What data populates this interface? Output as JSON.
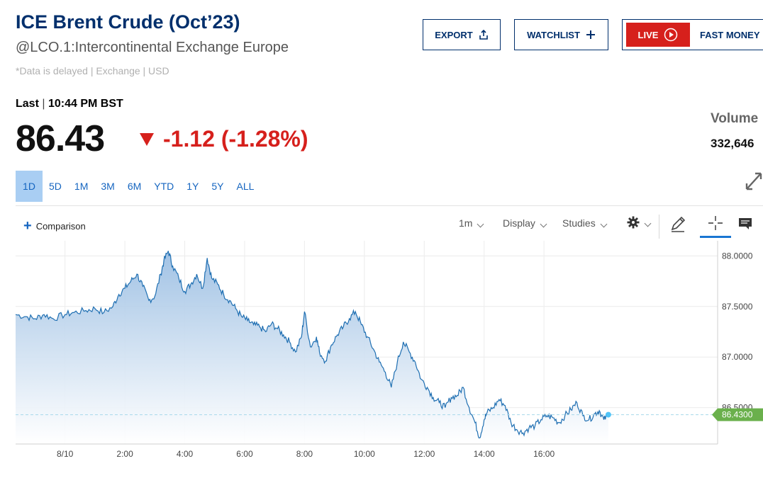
{
  "header": {
    "title": "ICE Brent Crude (Oct’23)",
    "subtitle": "@LCO.1:Intercontinental Exchange Europe",
    "delayed_note": "*Data is delayed | Exchange | USD"
  },
  "actions": {
    "export_label": "EXPORT",
    "watchlist_label": "WATCHLIST",
    "live_label": "LIVE",
    "fast_money_label": "FAST MONEY"
  },
  "quote": {
    "last_label": "Last",
    "separator": "|",
    "last_time": "10:44 PM BST",
    "price": "86.43",
    "change": "-1.12 (-1.28%)",
    "volume_label": "Volume",
    "volume_value": "332,646"
  },
  "ranges": [
    "1D",
    "5D",
    "1M",
    "3M",
    "6M",
    "YTD",
    "1Y",
    "5Y",
    "ALL"
  ],
  "active_range": "1D",
  "toolbar": {
    "comparison_label": "Comparison",
    "interval_label": "1m",
    "display_label": "Display",
    "studies_label": "Studies"
  },
  "colors": {
    "brand_navy": "#002f6c",
    "negative": "#d6201c",
    "line": "#1f6fb2",
    "last_tag": "#6ab04c",
    "last_dot": "#4fc3f7",
    "active_tab_bg": "#a9cef3"
  },
  "chart_data": {
    "type": "area",
    "x_tick_labels": [
      "8/10",
      "2:00",
      "4:00",
      "6:00",
      "8:00",
      "10:00",
      "12:00",
      "14:00",
      "16:00"
    ],
    "x_tick_hours": [
      0,
      2,
      4,
      6,
      8,
      10,
      12,
      14,
      16
    ],
    "x_range_hours": [
      -1.65,
      21.8
    ],
    "y_tick_labels": [
      "88.0000",
      "87.5000",
      "87.0000",
      "86.5000"
    ],
    "y_ticks": [
      88.0,
      87.5,
      87.0,
      86.5
    ],
    "y_range": [
      86.14,
      88.15
    ],
    "last_value_label": "86.4300",
    "last_value": 86.43,
    "grid": true,
    "series": [
      {
        "x": [
          -1.65,
          -1.3,
          -1.0,
          -0.7,
          -0.4,
          0.0,
          0.3,
          0.7,
          1.0,
          1.3,
          1.6,
          1.8,
          2.0,
          2.2,
          2.4,
          2.6,
          2.8,
          3.0,
          3.2,
          3.3,
          3.45,
          3.6,
          3.8,
          4.0,
          4.2,
          4.4,
          4.6,
          4.75,
          4.9,
          5.1,
          5.3,
          5.5,
          5.7,
          5.9,
          6.1,
          6.3,
          6.5,
          6.7,
          6.9,
          7.1,
          7.3,
          7.5,
          7.7,
          7.9,
          8.0,
          8.2,
          8.4,
          8.5,
          8.7,
          8.9,
          9.1,
          9.3,
          9.5,
          9.7,
          9.9,
          10.1,
          10.3,
          10.5,
          10.7,
          10.9,
          11.1,
          11.3,
          11.5,
          11.7,
          11.9,
          12.1,
          12.3,
          12.5,
          12.7,
          12.9,
          13.1,
          13.3,
          13.5,
          13.7,
          13.85,
          14.0,
          14.1,
          14.3,
          14.5,
          14.7,
          14.9,
          15.1,
          15.3,
          15.5,
          15.7,
          15.9,
          16.1,
          16.3,
          16.5,
          16.7,
          16.9,
          17.1,
          17.3,
          17.5,
          17.7,
          17.85,
          18.0,
          18.15
        ],
        "y": [
          87.42,
          87.4,
          87.38,
          87.42,
          87.38,
          87.42,
          87.44,
          87.46,
          87.48,
          87.44,
          87.5,
          87.62,
          87.68,
          87.75,
          87.82,
          87.7,
          87.56,
          87.6,
          87.82,
          87.95,
          88.05,
          87.9,
          87.78,
          87.65,
          87.72,
          87.82,
          87.68,
          87.98,
          87.78,
          87.72,
          87.62,
          87.56,
          87.48,
          87.4,
          87.36,
          87.32,
          87.3,
          87.25,
          87.33,
          87.28,
          87.22,
          87.15,
          87.05,
          87.2,
          87.45,
          87.1,
          87.2,
          87.05,
          86.96,
          87.12,
          87.22,
          87.3,
          87.38,
          87.45,
          87.32,
          87.2,
          87.08,
          86.95,
          86.85,
          86.7,
          86.95,
          87.15,
          87.05,
          86.95,
          86.78,
          86.7,
          86.6,
          86.55,
          86.5,
          86.6,
          86.62,
          86.7,
          86.5,
          86.35,
          86.2,
          86.38,
          86.45,
          86.5,
          86.58,
          86.52,
          86.35,
          86.28,
          86.25,
          86.3,
          86.32,
          86.38,
          86.42,
          86.4,
          86.35,
          86.42,
          86.48,
          86.55,
          86.42,
          86.38,
          86.44,
          86.47,
          86.38,
          86.43
        ]
      }
    ]
  }
}
